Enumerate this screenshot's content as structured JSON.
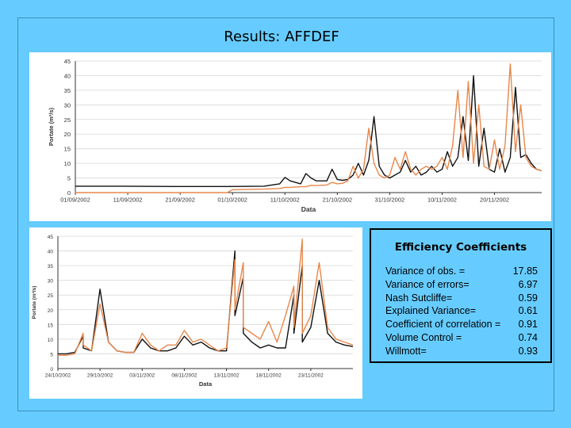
{
  "title": "Results: AFFDEF",
  "colors": {
    "background": "#66ccff",
    "observed": "#111111",
    "simulated": "#e8874a"
  },
  "efficiency": {
    "title": "Efficiency Coefficients",
    "rows": [
      {
        "label": "Variance of obs. =",
        "value": "17.85"
      },
      {
        "label": "Variance of  errors=",
        "value": "6.97"
      },
      {
        "label": "Nash Sutcliffe=",
        "value": "0.59"
      },
      {
        "label": "Explained Variance=",
        "value": "0.61"
      },
      {
        "label": "Coefficient of correlation =",
        "value": "0.91"
      },
      {
        "label": "Volume Control =",
        "value": "0.74"
      },
      {
        "label": "Willmott=",
        "value": "0.93"
      }
    ]
  },
  "chart_data": [
    {
      "type": "line",
      "title": "",
      "xlabel": "Data",
      "ylabel": "Portate (m³/s)",
      "ylim": [
        0,
        45
      ],
      "yticks": [
        0,
        5,
        10,
        15,
        20,
        25,
        30,
        35,
        40,
        45
      ],
      "xlim": [
        "01/09/2002",
        "29/11/2002"
      ],
      "xtick_labels": [
        "01/09/2002",
        "11/09/2002",
        "21/09/2002",
        "01/10/2002",
        "11/10/2002",
        "21/10/2002",
        "31/10/2002",
        "10/11/2002",
        "20/11/2002"
      ],
      "grid": true,
      "series": [
        {
          "color": "#111111",
          "x": [
            "01/09/2002",
            "10/09/2002",
            "20/09/2002",
            "30/09/2002",
            "07/10/2002",
            "10/10/2002",
            "11/10/2002",
            "12/10/2002",
            "14/10/2002",
            "15/10/2002",
            "16/10/2002",
            "17/10/2002",
            "19/10/2002",
            "20/10/2002",
            "21/10/2002",
            "22/10/2002",
            "23/10/2002",
            "24/10/2002",
            "25/10/2002",
            "26/10/2002",
            "27/10/2002",
            "28/10/2002",
            "29/10/2002",
            "30/10/2002",
            "31/10/2002",
            "01/11/2002",
            "02/11/2002",
            "03/11/2002",
            "04/11/2002",
            "05/11/2002",
            "06/11/2002",
            "07/11/2002",
            "08/11/2002",
            "09/11/2002",
            "10/11/2002",
            "11/11/2002",
            "12/11/2002",
            "13/11/2002",
            "14/11/2002",
            "15/11/2002",
            "16/11/2002",
            "17/11/2002",
            "18/11/2002",
            "19/11/2002",
            "20/11/2002",
            "21/11/2002",
            "22/11/2002",
            "23/11/2002",
            "24/11/2002",
            "25/11/2002",
            "26/11/2002",
            "27/11/2002",
            "28/11/2002",
            "29/11/2002"
          ],
          "y": [
            2.2,
            2.2,
            2.1,
            2.1,
            2.2,
            3,
            5.2,
            4,
            3,
            6.5,
            5,
            4,
            4,
            8,
            4.5,
            4.2,
            4.5,
            6,
            10,
            6,
            11,
            26,
            9,
            6,
            5,
            6,
            7,
            11,
            7,
            9,
            6,
            7,
            9,
            7,
            8,
            14,
            9,
            12,
            26,
            11,
            40,
            9,
            22,
            8,
            7,
            15,
            7,
            12,
            36,
            12,
            13,
            10,
            8,
            7.5
          ]
        },
        {
          "color": "#e8874a",
          "x": [
            "01/09/2002",
            "30/09/2002",
            "01/10/2002",
            "07/10/2002",
            "10/10/2002",
            "11/10/2002",
            "12/10/2002",
            "14/10/2002",
            "15/10/2002",
            "16/10/2002",
            "17/10/2002",
            "19/10/2002",
            "20/10/2002",
            "21/10/2002",
            "22/10/2002",
            "23/10/2002",
            "24/10/2002",
            "25/10/2002",
            "26/10/2002",
            "27/10/2002",
            "28/10/2002",
            "29/10/2002",
            "30/10/2002",
            "31/10/2002",
            "01/11/2002",
            "02/11/2002",
            "03/11/2002",
            "04/11/2002",
            "05/11/2002",
            "06/11/2002",
            "07/11/2002",
            "08/11/2002",
            "09/11/2002",
            "10/11/2002",
            "11/11/2002",
            "12/11/2002",
            "13/11/2002",
            "14/11/2002",
            "15/11/2002",
            "16/11/2002",
            "17/11/2002",
            "18/11/2002",
            "19/11/2002",
            "20/11/2002",
            "21/11/2002",
            "22/11/2002",
            "23/11/2002",
            "24/11/2002",
            "25/11/2002",
            "26/11/2002",
            "27/11/2002",
            "28/11/2002",
            "29/11/2002"
          ],
          "y": [
            0,
            0,
            1,
            1.2,
            1.4,
            1.8,
            1.8,
            2,
            2,
            2.5,
            2.4,
            2.6,
            3.5,
            3,
            3.2,
            4,
            9,
            5,
            8,
            22,
            10,
            6,
            5,
            6,
            12,
            8,
            14,
            8,
            6,
            8,
            9,
            8,
            9,
            12,
            8,
            16,
            35,
            12,
            38,
            10,
            30,
            9,
            8,
            18,
            8,
            16,
            44,
            14,
            30,
            12,
            9,
            8,
            7.5
          ]
        }
      ]
    },
    {
      "type": "line",
      "title": "",
      "xlabel": "Data",
      "ylabel": "Portate (m³/s)",
      "ylim": [
        0,
        45
      ],
      "yticks": [
        0,
        5,
        10,
        15,
        20,
        25,
        30,
        35,
        40,
        45
      ],
      "xlim": [
        "24/10/2002",
        "28/11/2002"
      ],
      "xtick_labels": [
        "24/10/2002",
        "29/10/2002",
        "03/11/2002",
        "08/11/2002",
        "13/11/2002",
        "18/11/2002",
        "23/11/2002"
      ],
      "grid": true,
      "series": [
        {
          "color": "#111111",
          "x": [
            "24/10/2002",
            "25/10/2002",
            "26/10/2002",
            "27/10/2002",
            "27/10/2002",
            "28/10/2002",
            "29/10/2002",
            "30/10/2002",
            "31/10/2002",
            "01/11/2002",
            "02/11/2002",
            "03/11/2002",
            "04/11/2002",
            "05/11/2002",
            "06/11/2002",
            "07/11/2002",
            "08/11/2002",
            "09/11/2002",
            "10/11/2002",
            "11/11/2002",
            "12/11/2002",
            "13/11/2002",
            "14/11/2002",
            "14/11/2002",
            "15/11/2002",
            "15/11/2002",
            "16/11/2002",
            "17/11/2002",
            "18/11/2002",
            "19/11/2002",
            "20/11/2002",
            "21/11/2002",
            "21/11/2002",
            "22/11/2002",
            "22/11/2002",
            "23/11/2002",
            "24/11/2002",
            "25/11/2002",
            "26/11/2002",
            "27/11/2002",
            "28/11/2002"
          ],
          "y": [
            5,
            5,
            5.5,
            11,
            7,
            6,
            27,
            9,
            6,
            5.5,
            5.5,
            10,
            7,
            6,
            6,
            7,
            11,
            8,
            9,
            7,
            6,
            6,
            40,
            18,
            31,
            12,
            9,
            7,
            8,
            7,
            7,
            25,
            12,
            35,
            9,
            14,
            30,
            12,
            9,
            8,
            7.5
          ]
        },
        {
          "color": "#e8874a",
          "x": [
            "24/10/2002",
            "25/10/2002",
            "26/10/2002",
            "27/10/2002",
            "27/10/2002",
            "28/10/2002",
            "29/10/2002",
            "30/10/2002",
            "31/10/2002",
            "01/11/2002",
            "02/11/2002",
            "03/11/2002",
            "04/11/2002",
            "05/11/2002",
            "06/11/2002",
            "07/11/2002",
            "08/11/2002",
            "09/11/2002",
            "10/11/2002",
            "11/11/2002",
            "12/11/2002",
            "13/11/2002",
            "14/11/2002",
            "14/11/2002",
            "15/11/2002",
            "15/11/2002",
            "16/11/2002",
            "17/11/2002",
            "18/11/2002",
            "19/11/2002",
            "20/11/2002",
            "21/11/2002",
            "21/11/2002",
            "22/11/2002",
            "22/11/2002",
            "23/11/2002",
            "24/11/2002",
            "25/11/2002",
            "26/11/2002",
            "27/11/2002",
            "28/11/2002"
          ],
          "y": [
            4.5,
            4.5,
            5,
            12,
            8,
            6,
            22,
            9,
            6,
            5.5,
            5.5,
            12,
            8,
            6,
            8,
            8,
            13,
            9,
            10,
            8,
            6,
            7,
            37,
            20,
            36,
            14,
            12,
            10,
            16,
            9,
            18,
            28,
            14,
            44,
            12,
            18,
            36,
            14,
            10,
            9,
            8
          ]
        }
      ]
    }
  ]
}
